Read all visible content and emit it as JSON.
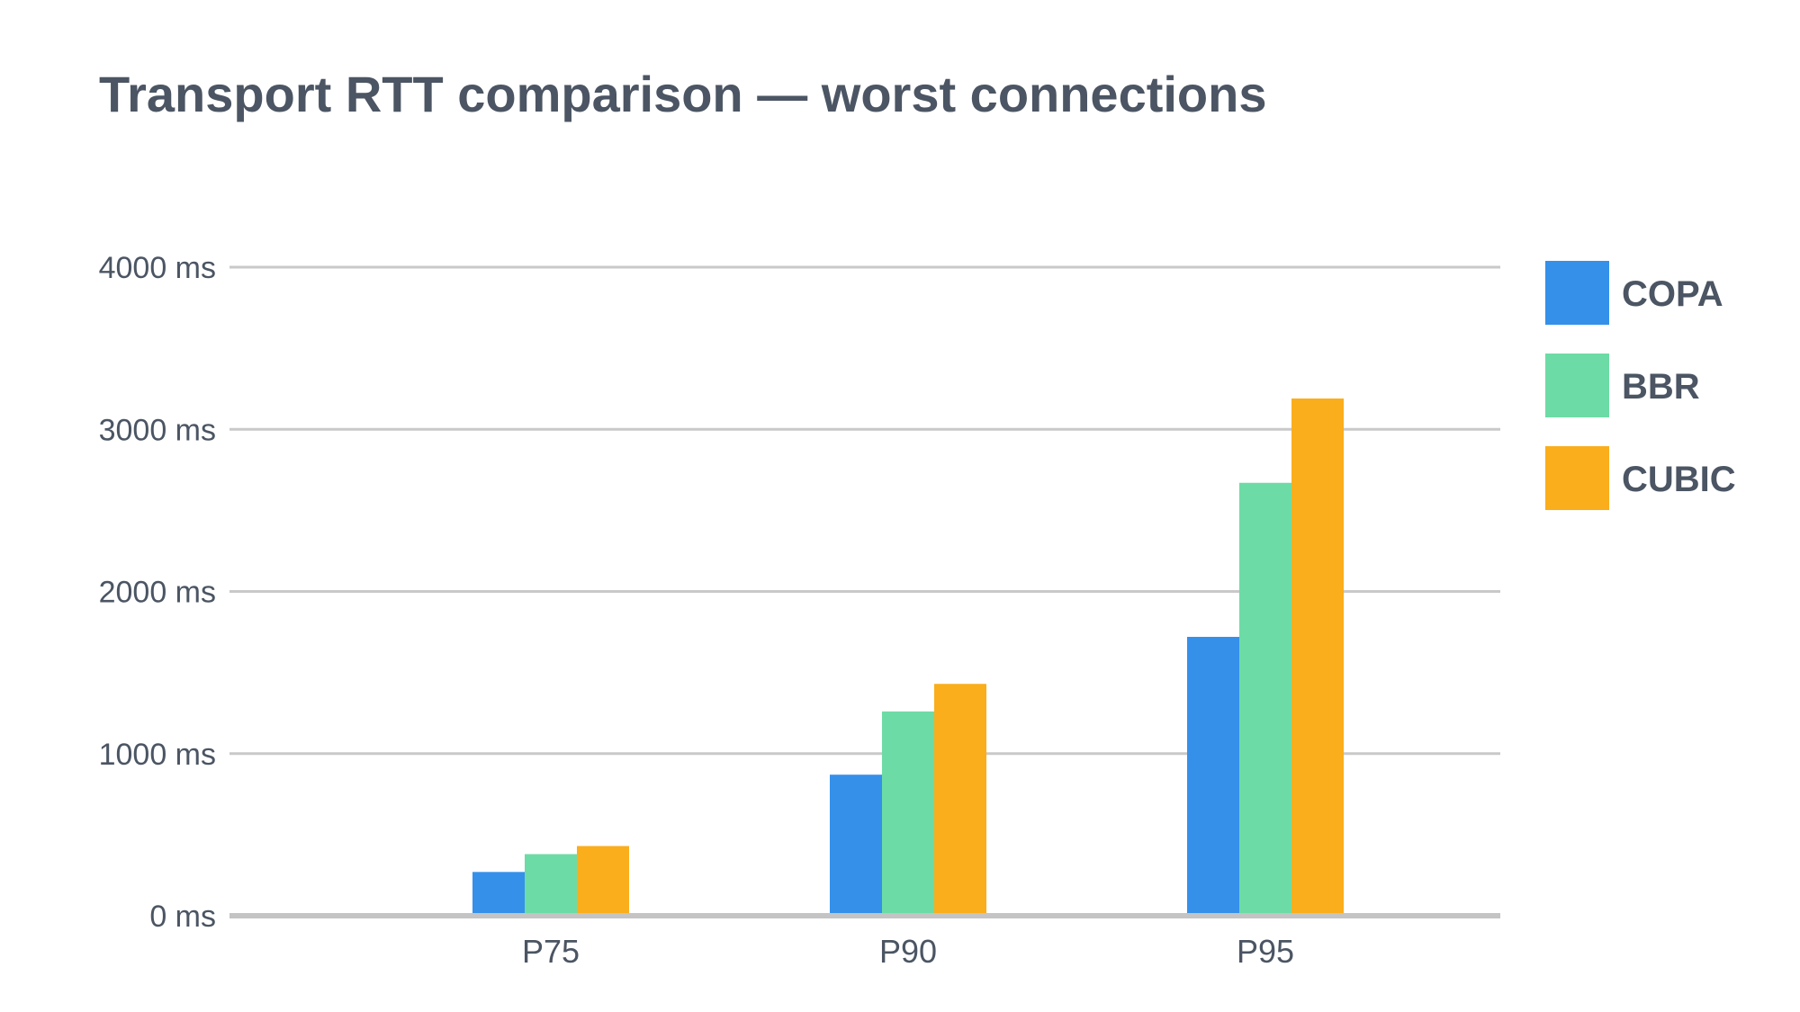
{
  "chart_data": {
    "type": "bar",
    "title": "Transport RTT comparison — worst connections",
    "categories": [
      "P75",
      "P90",
      "P95"
    ],
    "series": [
      {
        "name": "COPA",
        "color": "#3590ea",
        "values": [
          270,
          870,
          1720
        ]
      },
      {
        "name": "BBR",
        "color": "#6ddba5",
        "values": [
          380,
          1260,
          2670
        ]
      },
      {
        "name": "CUBIC",
        "color": "#faae1c",
        "values": [
          430,
          1430,
          3190
        ]
      }
    ],
    "y_ticks": [
      "0 ms",
      "1000 ms",
      "2000 ms",
      "3000 ms",
      "4000 ms"
    ],
    "ylim": [
      0,
      4000
    ],
    "grid": true,
    "legend_position": "right"
  }
}
